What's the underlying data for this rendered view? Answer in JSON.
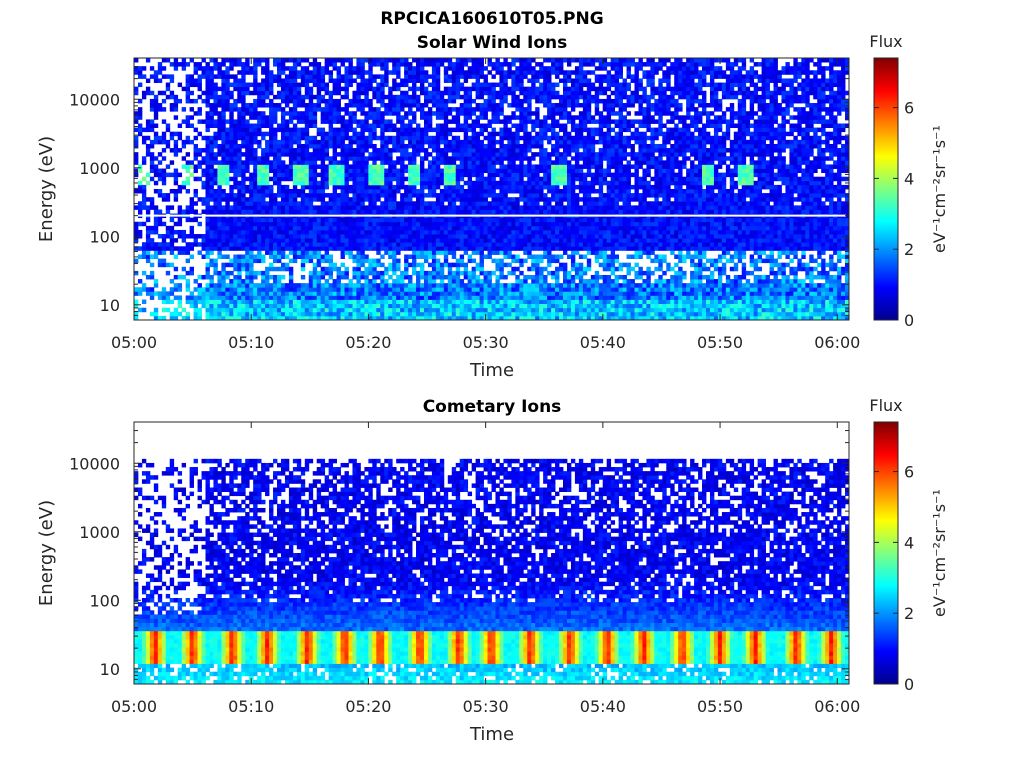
{
  "figure": {
    "suptitle": "RPCICA160610T05.PNG"
  },
  "colors": {
    "colormap": "jet",
    "background": "#ffffff",
    "axis": "#262626",
    "white_line": "#ffffff"
  },
  "chart_data": [
    {
      "type": "heatmap",
      "title": "Solar Wind Ions",
      "xlabel": "Time",
      "ylabel": "Energy (eV)",
      "x_ticks": [
        "05:00",
        "05:10",
        "05:20",
        "05:30",
        "05:40",
        "05:50",
        "06:00"
      ],
      "x_range_minutes": [
        0,
        61
      ],
      "y_scale": "log",
      "y_ticks": [
        "10",
        "100",
        "1000",
        "10000"
      ],
      "y_range": [
        6,
        40000
      ],
      "colorbar": {
        "title": "Flux",
        "label": "eV⁻¹cm⁻²sr⁻¹s⁻¹",
        "ticks": [
          "0",
          "2",
          "4",
          "6"
        ],
        "range": [
          0,
          7.4
        ]
      },
      "reference_line_energy": 200,
      "features": {
        "periodic_peaks_energy": 800,
        "peak_times_minutes": [
          0.8,
          4.6,
          7.7,
          11.1,
          14.2,
          17.3,
          20.7,
          23.9,
          26.9,
          36.3,
          49.0,
          52.2
        ],
        "peak_flux": 3.5,
        "sparse_noise_region_minutes": [
          0,
          6
        ],
        "low_energy_gaps_ev": [
          10,
          60
        ]
      }
    },
    {
      "type": "heatmap",
      "title": "Cometary Ions",
      "xlabel": "Time",
      "ylabel": "Energy (eV)",
      "x_ticks": [
        "05:00",
        "05:10",
        "05:20",
        "05:30",
        "05:40",
        "05:50",
        "06:00"
      ],
      "x_range_minutes": [
        0,
        61
      ],
      "y_scale": "log",
      "y_ticks": [
        "10",
        "100",
        "1000",
        "10000"
      ],
      "y_range": [
        6,
        40000
      ],
      "colorbar": {
        "title": "Flux",
        "label": "eV⁻¹cm⁻²sr⁻¹s⁻¹",
        "ticks": [
          "0",
          "2",
          "4",
          "6"
        ],
        "range": [
          0,
          7.4
        ]
      },
      "features": {
        "max_energy_ev": 11000,
        "peak_band_energy_ev": [
          12,
          35
        ],
        "peak_times_minutes": [
          1.8,
          5.0,
          8.4,
          11.4,
          14.8,
          18.0,
          21.0,
          24.4,
          27.7,
          30.5,
          33.8,
          37.2,
          40.4,
          43.5,
          46.8,
          50.0,
          53.0,
          56.5,
          59.5
        ],
        "peak_flux": 6.2
      }
    }
  ]
}
